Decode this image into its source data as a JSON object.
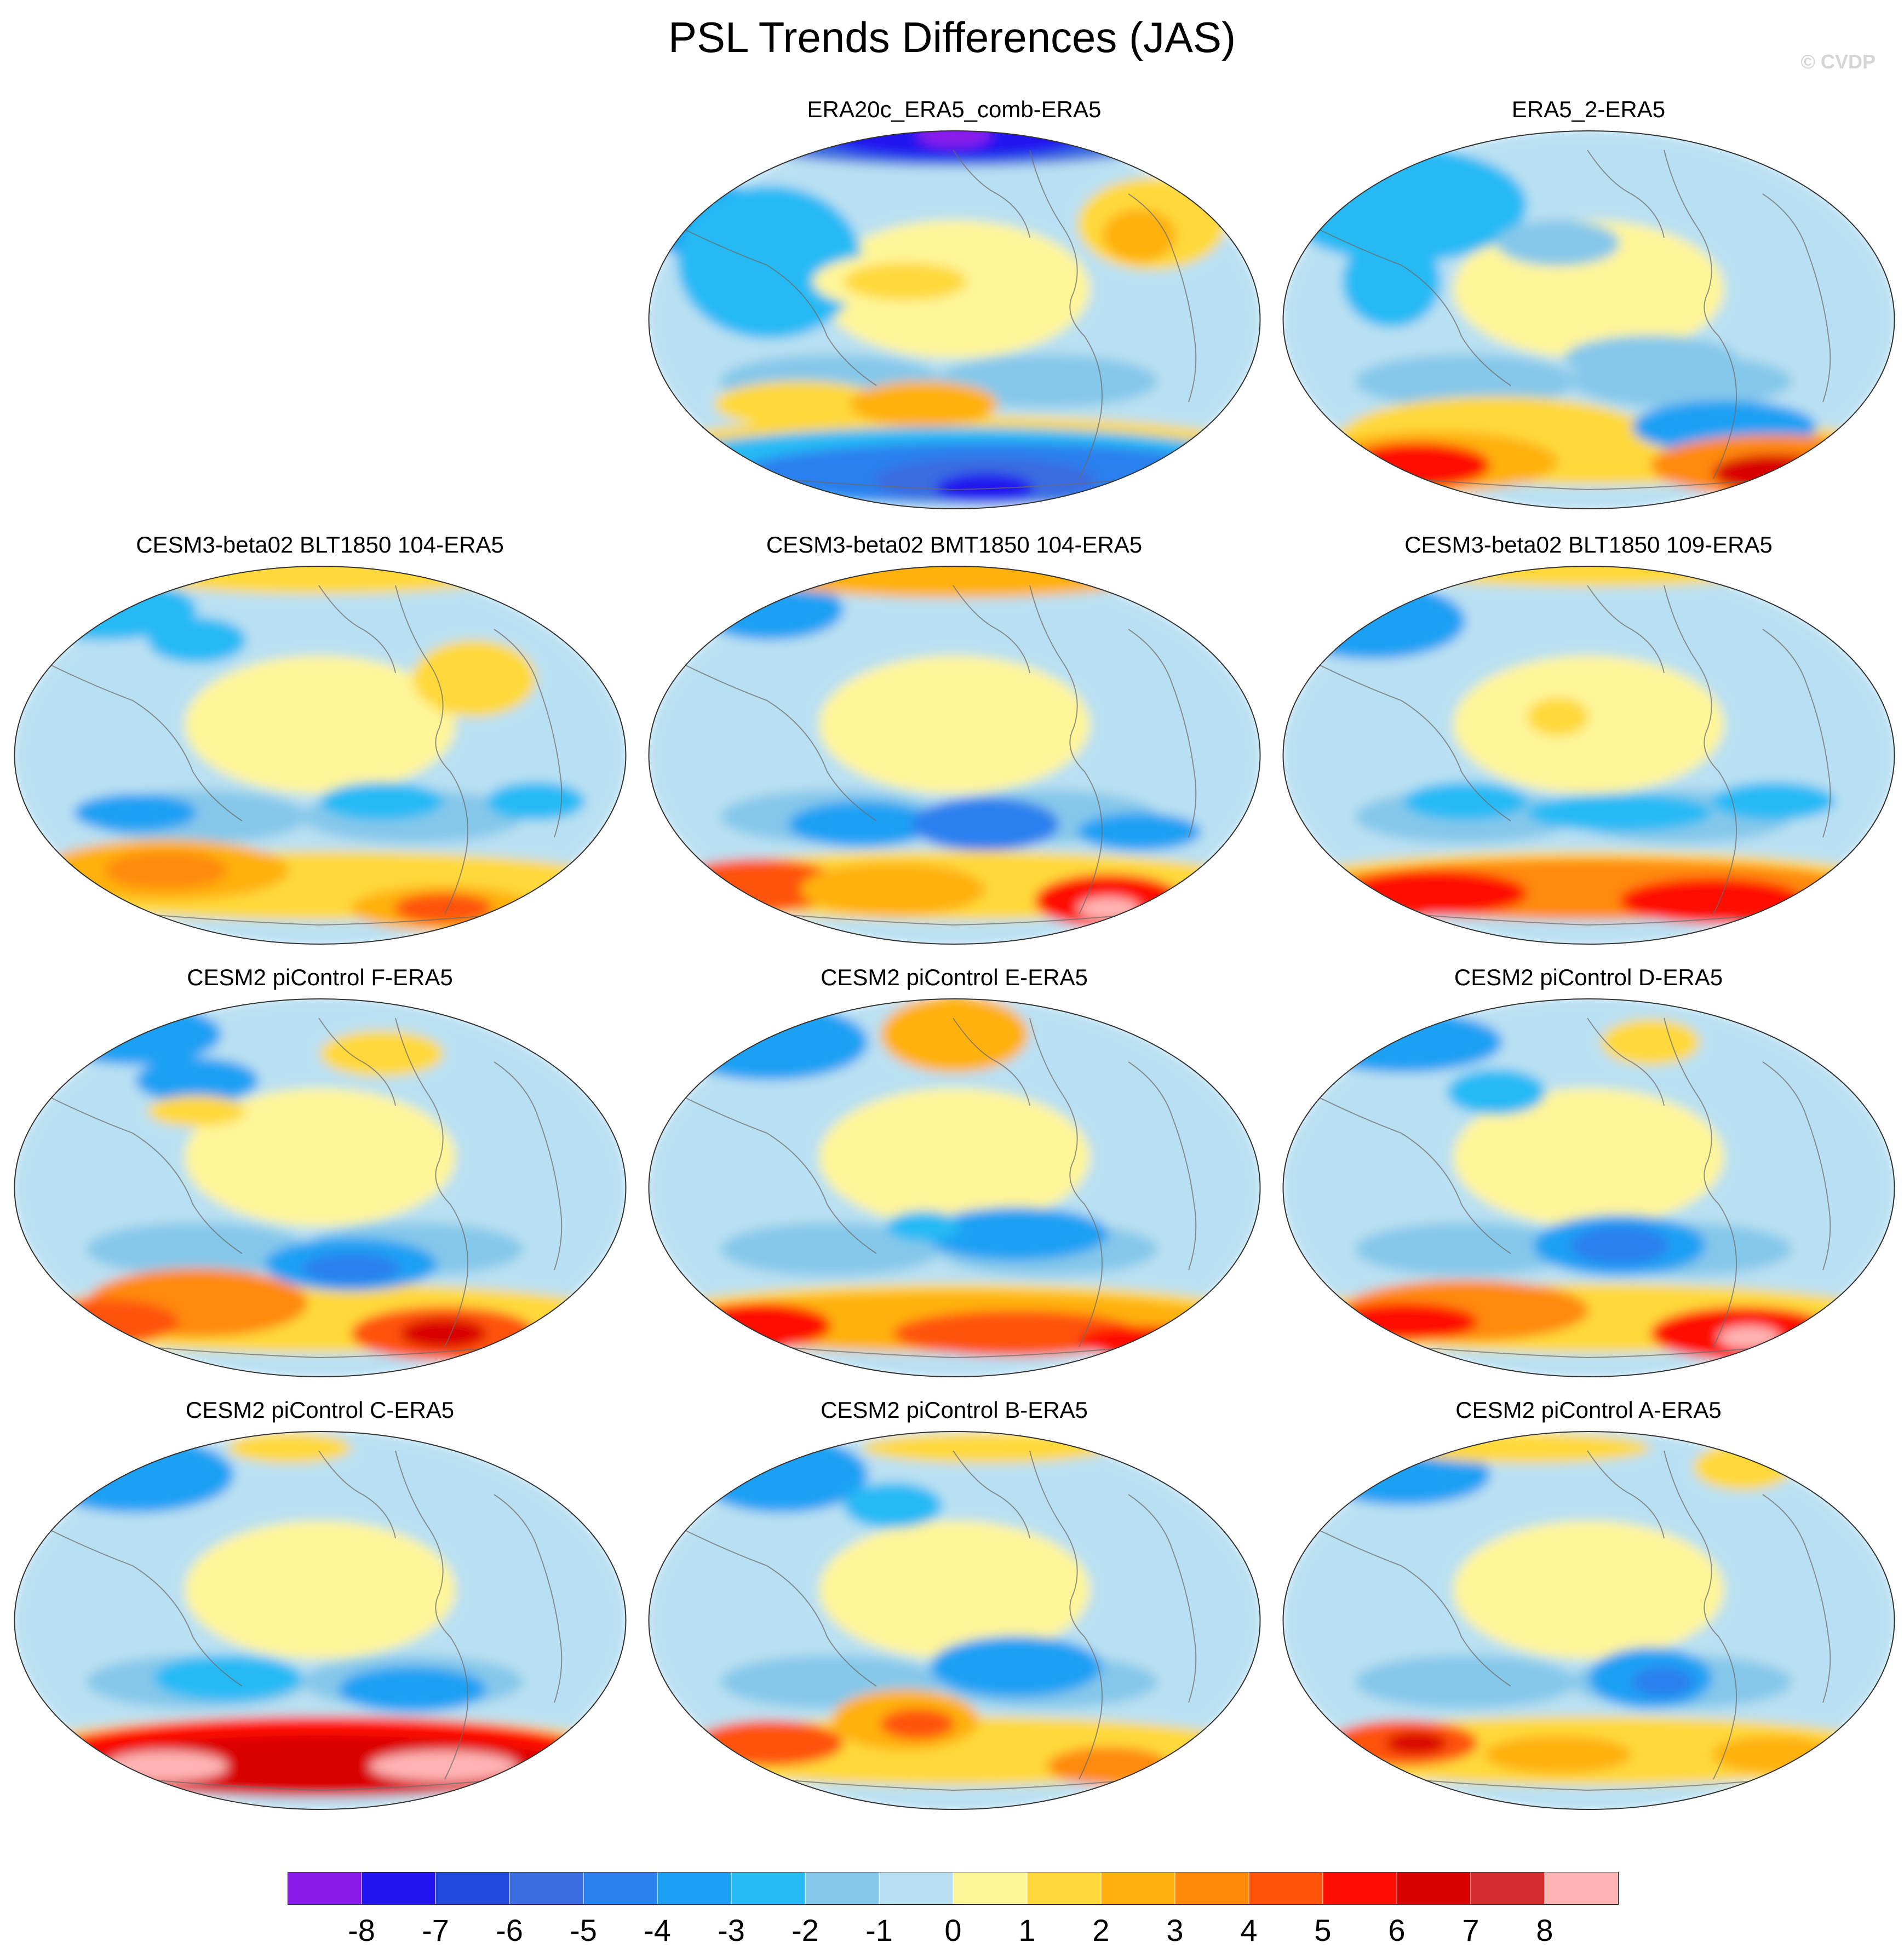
{
  "title": "PSL Trends Differences (JAS)",
  "watermark": "© CVDP",
  "panels": [
    {
      "title": "ERA20c_ERA5_comb-ERA5",
      "pattern": "era20c"
    },
    {
      "title": "ERA5_2-ERA5",
      "pattern": "era5_2"
    },
    {
      "title": "CESM3-beta02 BLT1850 104-ERA5",
      "pattern": "blt104"
    },
    {
      "title": "CESM3-beta02 BMT1850 104-ERA5",
      "pattern": "bmt104"
    },
    {
      "title": "CESM3-beta02 BLT1850 109-ERA5",
      "pattern": "blt109"
    },
    {
      "title": "CESM2 piControl F-ERA5",
      "pattern": "picF"
    },
    {
      "title": "CESM2 piControl E-ERA5",
      "pattern": "picE"
    },
    {
      "title": "CESM2 piControl D-ERA5",
      "pattern": "picD"
    },
    {
      "title": "CESM2 piControl C-ERA5",
      "pattern": "picC"
    },
    {
      "title": "CESM2 piControl B-ERA5",
      "pattern": "picB"
    },
    {
      "title": "CESM2 piControl A-ERA5",
      "pattern": "picA"
    }
  ],
  "colorbar": {
    "labels": [
      "-8",
      "-7",
      "-6",
      "-5",
      "-4",
      "-3",
      "-2",
      "-1",
      "0",
      "1",
      "2",
      "3",
      "4",
      "5",
      "6",
      "7",
      "8"
    ],
    "colors": [
      "#8a1aea",
      "#2315ef",
      "#2348dc",
      "#3b6ce0",
      "#2a80ee",
      "#1ba0f4",
      "#27baf5",
      "#86c8ea",
      "#b9e0f2",
      "#fff599",
      "#ffd93a",
      "#ffb10f",
      "#ff8a0a",
      "#ff5309",
      "#ff0e04",
      "#d90000",
      "#d42c2c",
      "#ffb4b4"
    ]
  }
}
